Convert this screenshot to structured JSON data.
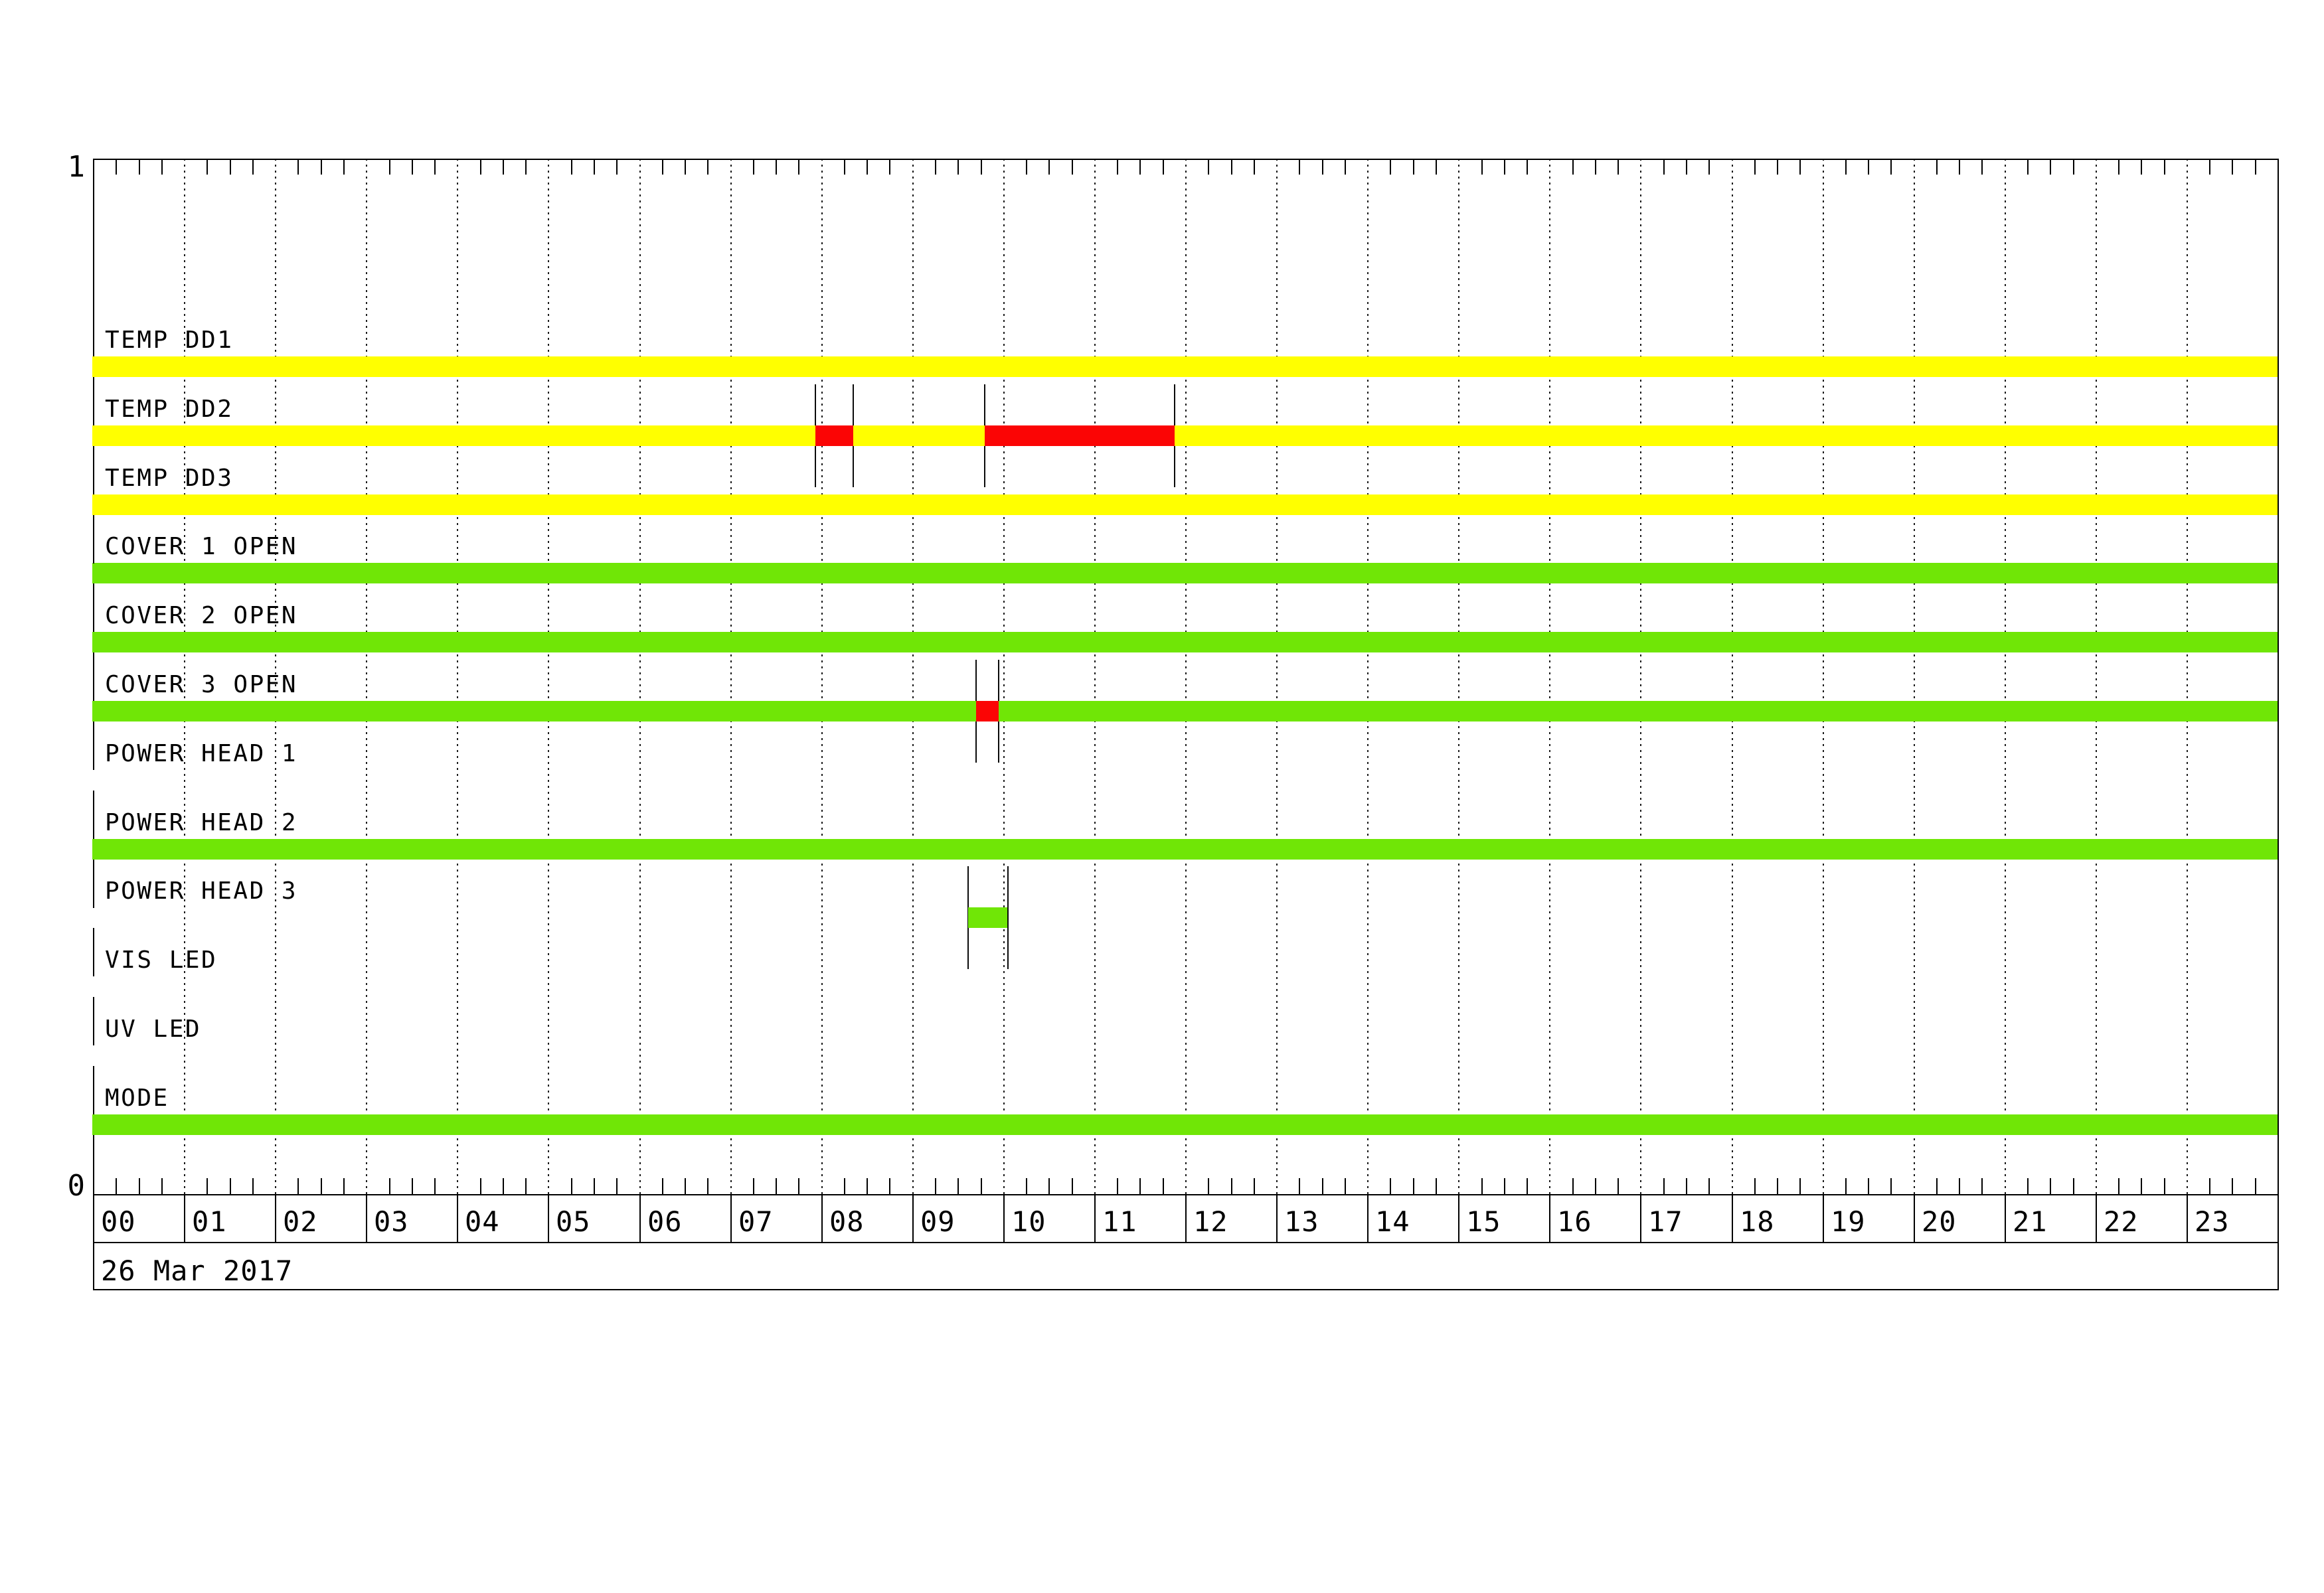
{
  "y_axis": {
    "top_label": "1",
    "bottom_label": "0"
  },
  "x_axis": {
    "hour_labels": [
      "00",
      "01",
      "02",
      "03",
      "04",
      "05",
      "06",
      "07",
      "08",
      "09",
      "10",
      "11",
      "12",
      "13",
      "14",
      "15",
      "16",
      "17",
      "18",
      "19",
      "20",
      "21",
      "22",
      "23"
    ]
  },
  "footer": {
    "date": "26 Mar 2017"
  },
  "chart_data": {
    "type": "timeline-status",
    "title": "",
    "date": "26 Mar 2017",
    "x_range_hours": [
      0,
      24
    ],
    "x_tick_minutes": 15,
    "x_gridline_minutes": 60,
    "grid": "dotted-hourly",
    "y_axis_labels": {
      "top": "1",
      "bottom": "0"
    },
    "colors": {
      "yellow": "#FFFF00",
      "green": "#70E606",
      "red": "#FB0505"
    },
    "rows": [
      {
        "label": "TEMP DD1",
        "base": "yellow",
        "base_span": [
          "00:00",
          "24:00"
        ],
        "events": []
      },
      {
        "label": "TEMP DD2",
        "base": "yellow",
        "base_span": [
          "00:00",
          "24:00"
        ],
        "events": [
          {
            "color": "red",
            "start": "07:56",
            "end": "08:21"
          },
          {
            "color": "red",
            "start": "09:48",
            "end": "11:53"
          }
        ]
      },
      {
        "label": "TEMP DD3",
        "base": "yellow",
        "base_span": [
          "00:00",
          "24:00"
        ],
        "events": []
      },
      {
        "label": "COVER 1 OPEN",
        "base": "green",
        "base_span": [
          "00:00",
          "24:00"
        ],
        "events": []
      },
      {
        "label": "COVER 2 OPEN",
        "base": "green",
        "base_span": [
          "00:00",
          "24:00"
        ],
        "events": []
      },
      {
        "label": "COVER 3 OPEN",
        "base": "green",
        "base_span": [
          "00:00",
          "24:00"
        ],
        "events": [
          {
            "color": "red",
            "start": "09:42",
            "end": "09:57"
          }
        ]
      },
      {
        "label": "POWER HEAD 1",
        "base": null,
        "base_span": null,
        "events": []
      },
      {
        "label": "POWER HEAD 2",
        "base": "green",
        "base_span": [
          "00:00",
          "24:00"
        ],
        "events": []
      },
      {
        "label": "POWER HEAD 3",
        "base": null,
        "base_span": null,
        "events": [
          {
            "color": "green",
            "start": "09:37",
            "end": "10:03"
          }
        ]
      },
      {
        "label": "VIS LED",
        "base": null,
        "base_span": null,
        "events": []
      },
      {
        "label": "UV LED",
        "base": null,
        "base_span": null,
        "events": []
      },
      {
        "label": "MODE",
        "base": "green",
        "base_span": [
          "00:00",
          "24:00"
        ],
        "events": []
      }
    ]
  }
}
